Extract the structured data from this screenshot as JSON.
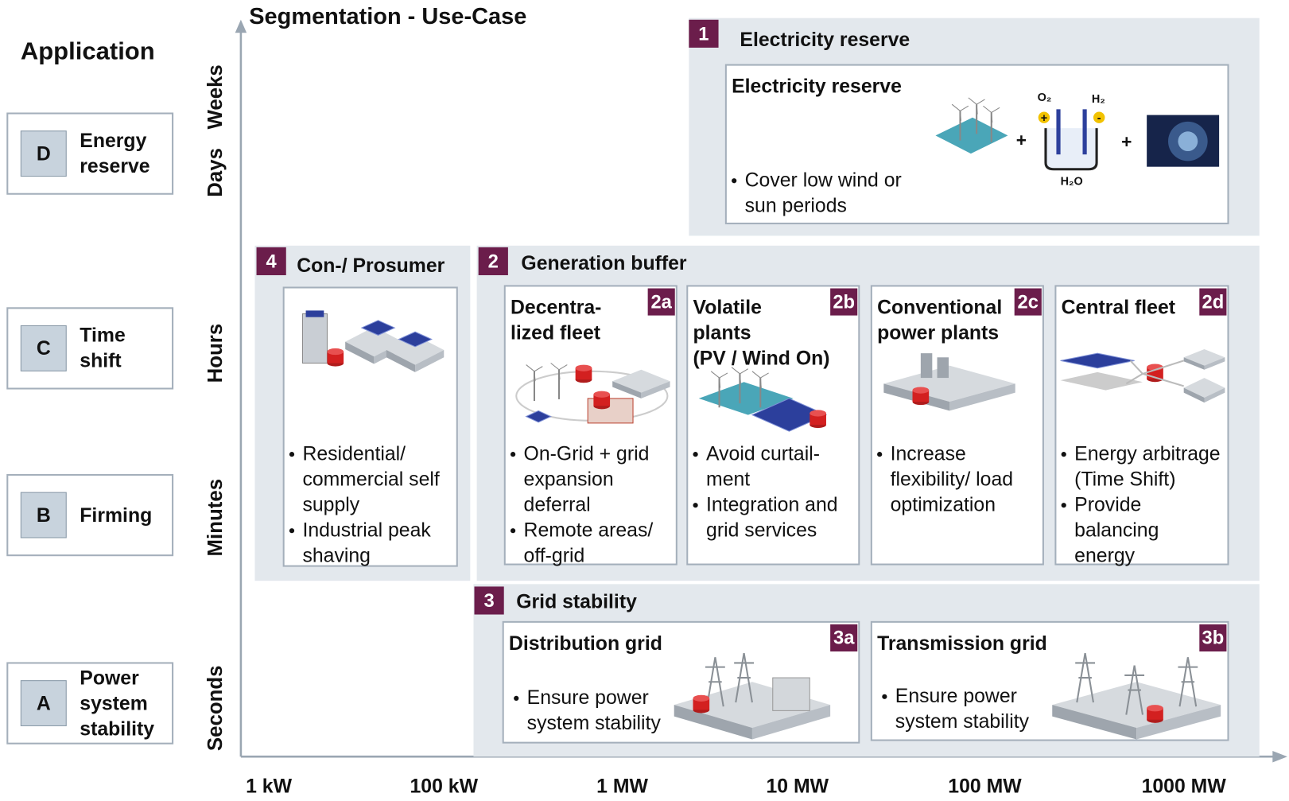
{
  "title": "Segmentation - Use-Case",
  "application": {
    "header": "Application",
    "items": [
      {
        "letter": "D",
        "lines": [
          "Energy",
          "reserve"
        ]
      },
      {
        "letter": "C",
        "lines": [
          "Time",
          "shift"
        ]
      },
      {
        "letter": "B",
        "lines": [
          "Firming"
        ]
      },
      {
        "letter": "A",
        "lines": [
          "Power",
          "system",
          "stability"
        ]
      }
    ]
  },
  "y_axis": [
    "Weeks",
    "Days",
    "Hours",
    "Minutes",
    "Seconds"
  ],
  "x_axis": [
    "1 kW",
    "100 kW",
    "1 MW",
    "10 MW",
    "100 MW",
    "1000 MW"
  ],
  "groups": [
    {
      "number": "1",
      "title": "Electricity reserve",
      "cards": [
        {
          "title_lines": [
            "Electricity reserve"
          ],
          "bullets": [
            [
              "Cover low wind or",
              "sun periods"
            ]
          ],
          "diagram": {
            "o2": "O₂",
            "h2": "H₂",
            "h2o": "H₂O",
            "electrodes": [
              "+",
              "-"
            ],
            "operators": [
              "+",
              "+"
            ]
          }
        }
      ]
    },
    {
      "number": "4",
      "title": "Con-/ Prosumer",
      "cards": [
        {
          "bullets": [
            [
              "Residential/",
              "commercial self",
              "supply"
            ],
            [
              "Industrial peak",
              "shaving"
            ]
          ]
        }
      ]
    },
    {
      "number": "2",
      "title": "Generation buffer",
      "cards": [
        {
          "tag": "2a",
          "title_lines": [
            "Decentra-",
            "lized fleet"
          ],
          "bullets": [
            [
              "On-Grid + grid",
              "expansion",
              "deferral"
            ],
            [
              "Remote areas/",
              "off-grid"
            ]
          ]
        },
        {
          "tag": "2b",
          "title_lines": [
            "Volatile",
            "plants",
            "(PV / Wind On)"
          ],
          "bullets": [
            [
              "Avoid curtail-",
              "ment"
            ],
            [
              "Integration and",
              "grid services"
            ]
          ]
        },
        {
          "tag": "2c",
          "title_lines": [
            "Conventional",
            "power plants"
          ],
          "bullets": [
            [
              "Increase",
              "flexibility/ load",
              "optimization"
            ]
          ]
        },
        {
          "tag": "2d",
          "title_lines": [
            "Central fleet"
          ],
          "bullets": [
            [
              "Energy arbitrage",
              "(Time Shift)"
            ],
            [
              "Provide",
              "balancing",
              "energy"
            ]
          ]
        }
      ]
    },
    {
      "number": "3",
      "title": "Grid stability",
      "cards": [
        {
          "tag": "3a",
          "title_lines": [
            "Distribution grid"
          ],
          "bullets": [
            [
              "Ensure power",
              "system stability"
            ]
          ]
        },
        {
          "tag": "3b",
          "title_lines": [
            "Transmission grid"
          ],
          "bullets": [
            [
              "Ensure power",
              "system stability"
            ]
          ]
        }
      ]
    }
  ]
}
